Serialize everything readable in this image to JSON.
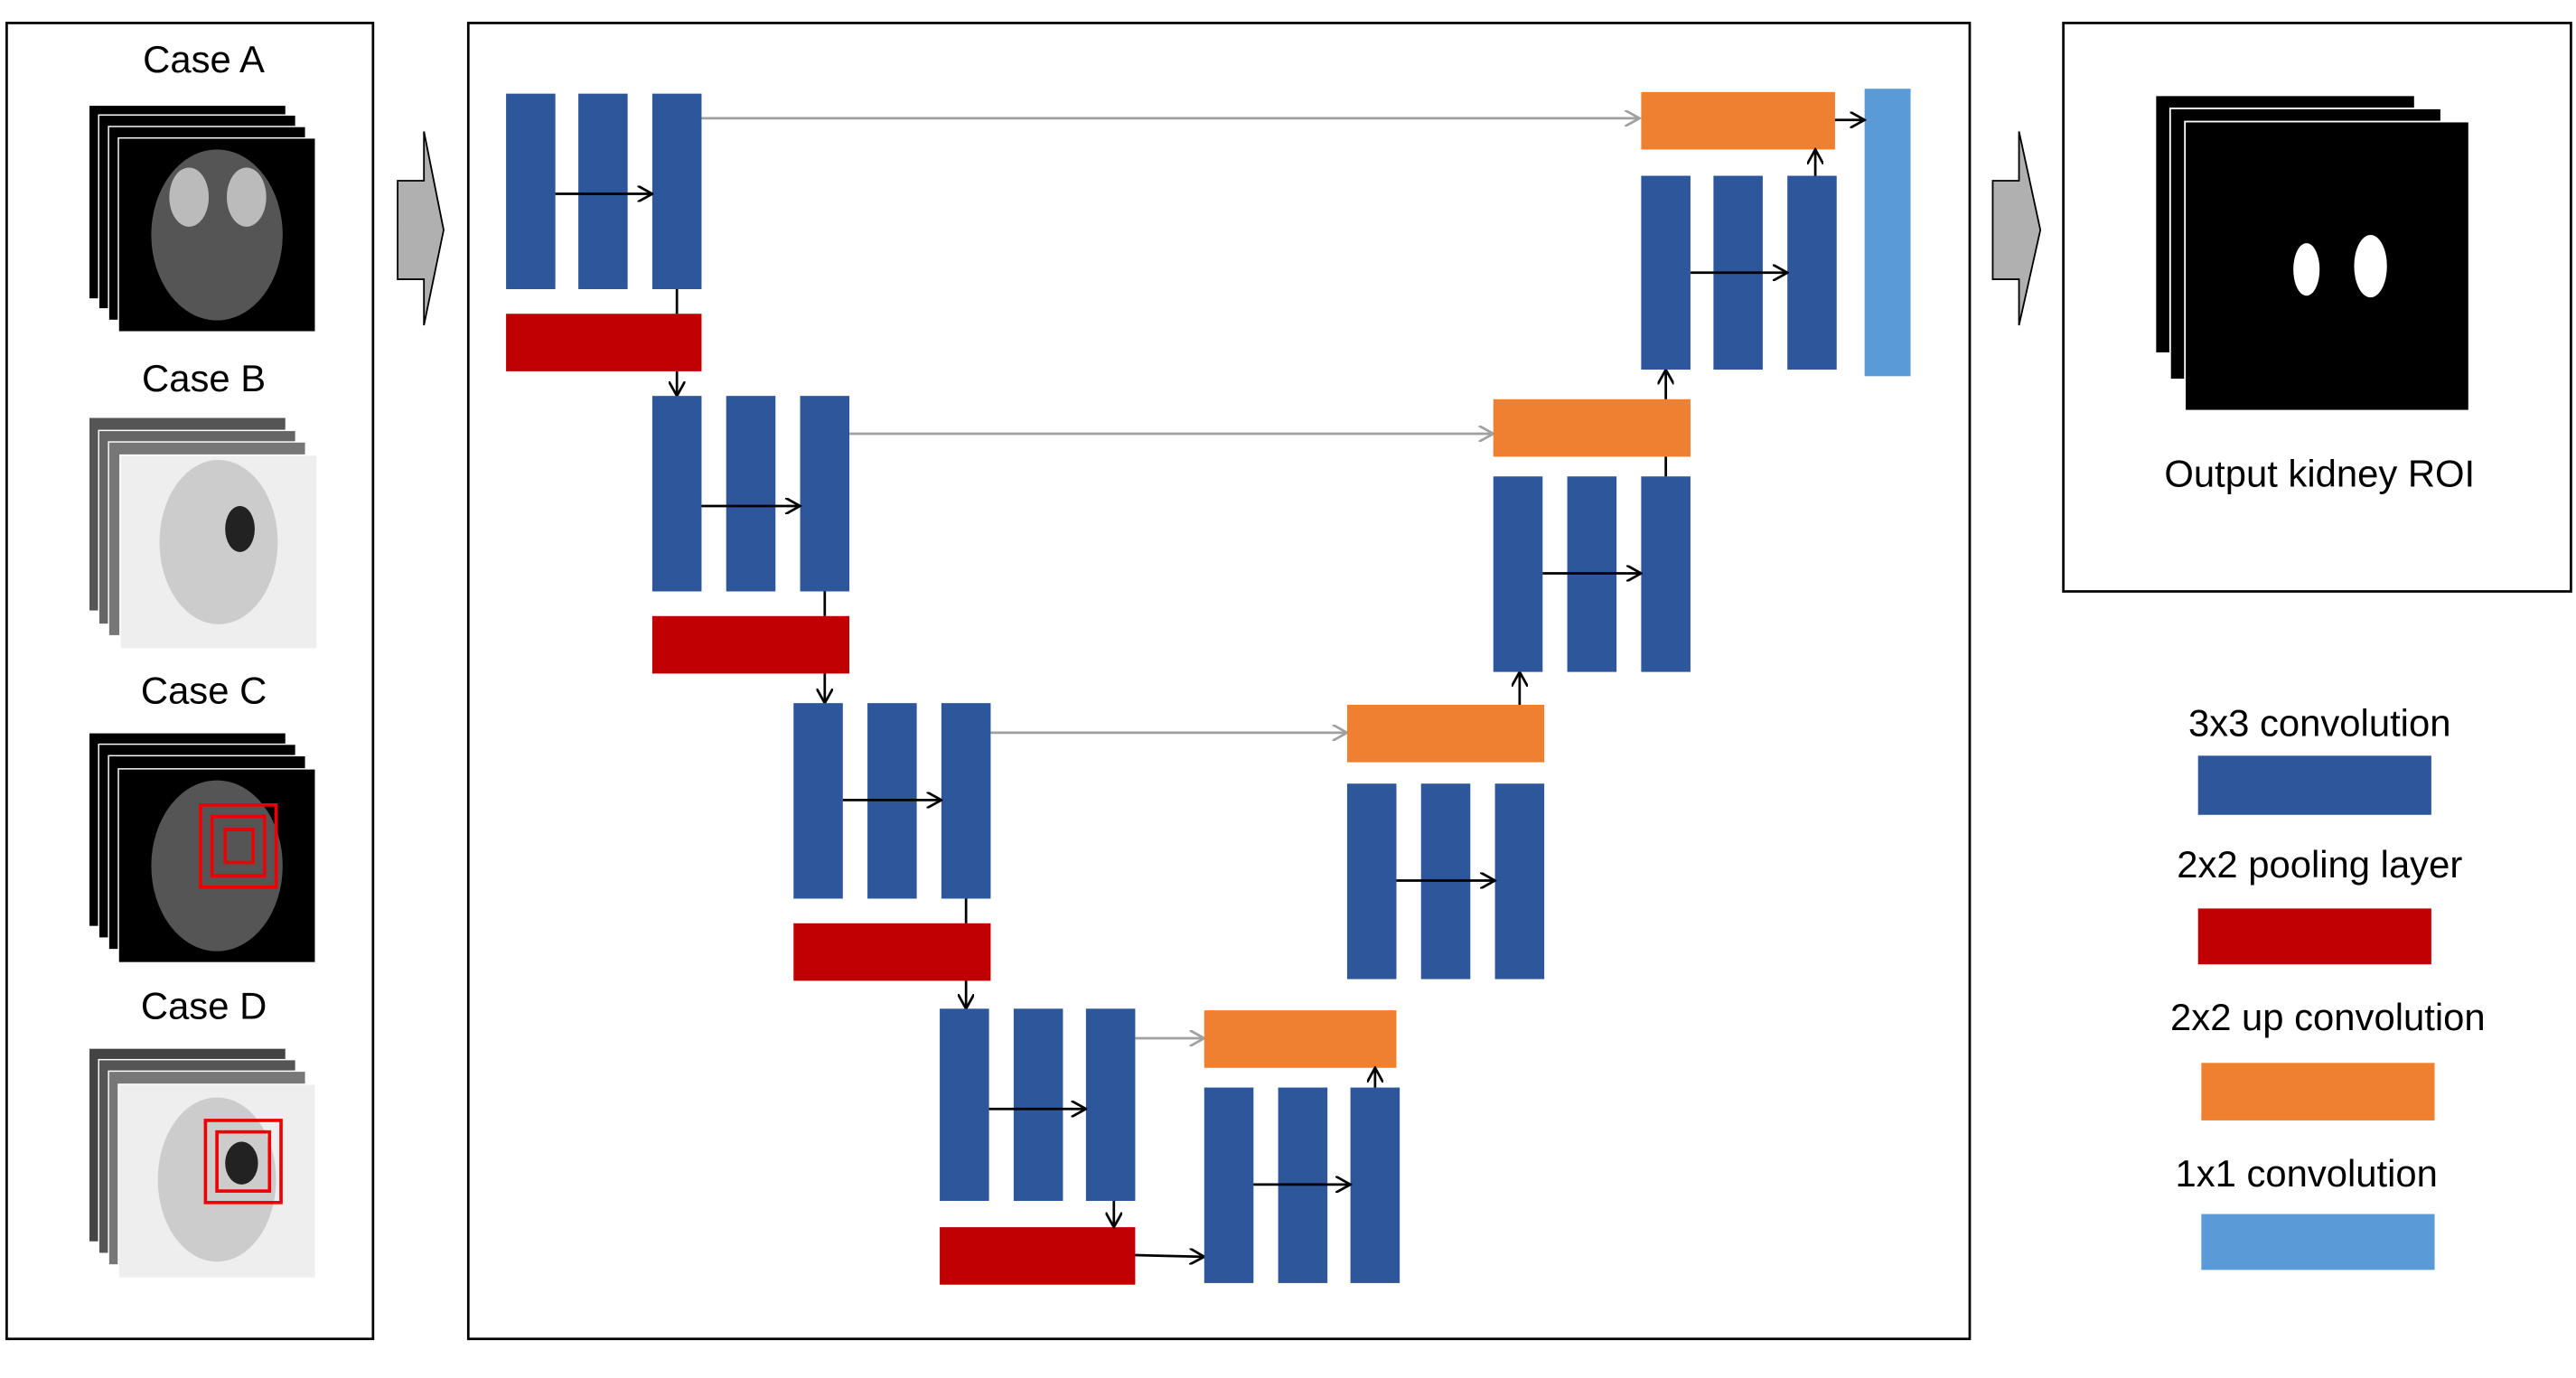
{
  "cases": [
    "Case A",
    "Case B",
    "Case C",
    "Case D"
  ],
  "output": "Output kidney ROI",
  "legend": [
    "3x3 convolution",
    "2x2 pooling layer",
    "2x2 up convolution",
    "1x1 convolution"
  ]
}
